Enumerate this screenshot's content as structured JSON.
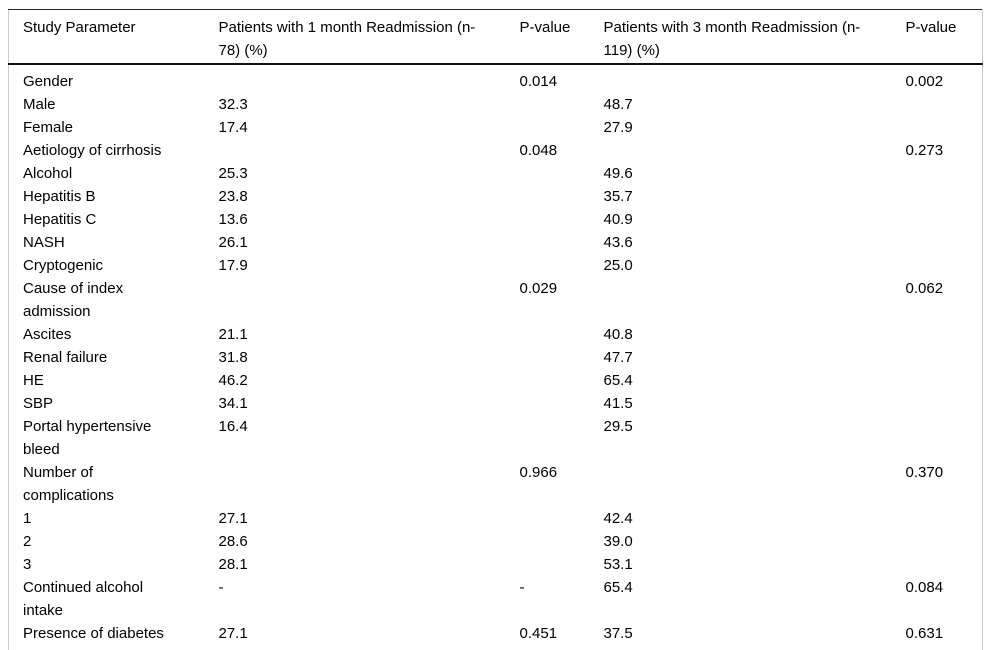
{
  "table": {
    "columns": [
      "Study Parameter",
      "Patients with 1 month Readmission (n-78) (%)",
      "P-value",
      "Patients with 3 month Readmission (n-119) (%)",
      "P-value"
    ],
    "rows": [
      [
        "Gender",
        "",
        "0.014",
        "",
        "0.002"
      ],
      [
        "Male",
        "32.3",
        "",
        "48.7",
        ""
      ],
      [
        "Female",
        "17.4",
        "",
        "27.9",
        ""
      ],
      [
        "Aetiology of cirrhosis",
        "",
        "0.048",
        "",
        "0.273"
      ],
      [
        "Alcohol",
        "25.3",
        "",
        "49.6",
        ""
      ],
      [
        "Hepatitis B",
        "23.8",
        "",
        "35.7",
        ""
      ],
      [
        "Hepatitis C",
        "13.6",
        "",
        "40.9",
        ""
      ],
      [
        "NASH",
        "26.1",
        "",
        "43.6",
        ""
      ],
      [
        "Cryptogenic",
        "17.9",
        "",
        "25.0",
        ""
      ],
      [
        "Cause of index admission",
        "",
        "0.029",
        "",
        "0.062"
      ],
      [
        "Ascites",
        "21.1",
        "",
        "40.8",
        ""
      ],
      [
        "Renal failure",
        "31.8",
        "",
        "47.7",
        ""
      ],
      [
        "HE",
        "46.2",
        "",
        "65.4",
        ""
      ],
      [
        "SBP",
        "34.1",
        "",
        "41.5",
        ""
      ],
      [
        "Portal hypertensive bleed",
        "16.4",
        "",
        "29.5",
        ""
      ],
      [
        "Number of complications",
        "",
        "0.966",
        "",
        "0.370"
      ],
      [
        "1",
        "27.1",
        "",
        "42.4",
        ""
      ],
      [
        "2",
        "28.6",
        "",
        "39.0",
        ""
      ],
      [
        "3",
        "28.1",
        "",
        "53.1",
        ""
      ],
      [
        "Continued alcohol intake",
        "-",
        "-",
        "65.4",
        "0.084"
      ],
      [
        "Presence of diabetes",
        "27.1",
        "0.451",
        "37.5",
        "0.631"
      ]
    ]
  },
  "colors": {
    "text": "#000000",
    "rule_dark": "#111111",
    "rule_light": "#cbcbcb",
    "background": "#ffffff"
  }
}
